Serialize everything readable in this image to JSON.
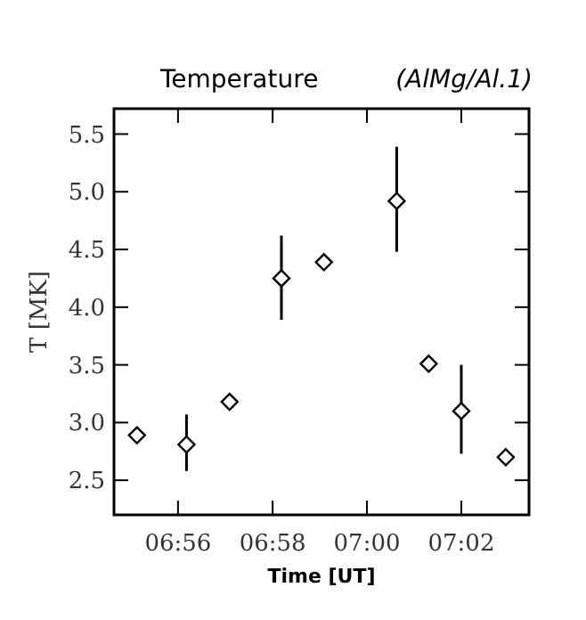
{
  "chart_data": {
    "type": "scatter",
    "title": "Temperature",
    "subtitle": "(AlMg/Al.1)",
    "xlabel": "Time [UT]",
    "ylabel": "T [MK]",
    "x": [
      6.9188,
      6.9363,
      6.9515,
      6.9698,
      6.9848,
      7.0105,
      7.0218,
      7.0333,
      7.049
    ],
    "values": [
      2.89,
      2.81,
      3.18,
      4.25,
      4.39,
      4.92,
      3.51,
      3.1,
      2.7
    ],
    "errors": [
      null,
      [
        2.58,
        3.07
      ],
      null,
      [
        3.89,
        4.62
      ],
      null,
      [
        4.48,
        5.39
      ],
      null,
      [
        2.73,
        3.5
      ],
      null
    ],
    "color": "#000000",
    "marker": "diamond",
    "xlim": [
      6.9107,
      7.0572
    ],
    "xticks": [
      {
        "value": 6.9333,
        "label": "06:56"
      },
      {
        "value": 6.9667,
        "label": "06:58"
      },
      {
        "value": 7.0,
        "label": "07:00"
      },
      {
        "value": 7.0333,
        "label": "07:02"
      }
    ],
    "ylim": [
      2.2,
      5.72
    ],
    "yticks": [
      {
        "value": 2.5,
        "label": "2.5"
      },
      {
        "value": 3.0,
        "label": "3.0"
      },
      {
        "value": 3.5,
        "label": "3.5"
      },
      {
        "value": 4.0,
        "label": "4.0"
      },
      {
        "value": 4.5,
        "label": "4.5"
      },
      {
        "value": 5.0,
        "label": "5.0"
      },
      {
        "value": 5.5,
        "label": "5.5"
      }
    ],
    "grid": false
  }
}
